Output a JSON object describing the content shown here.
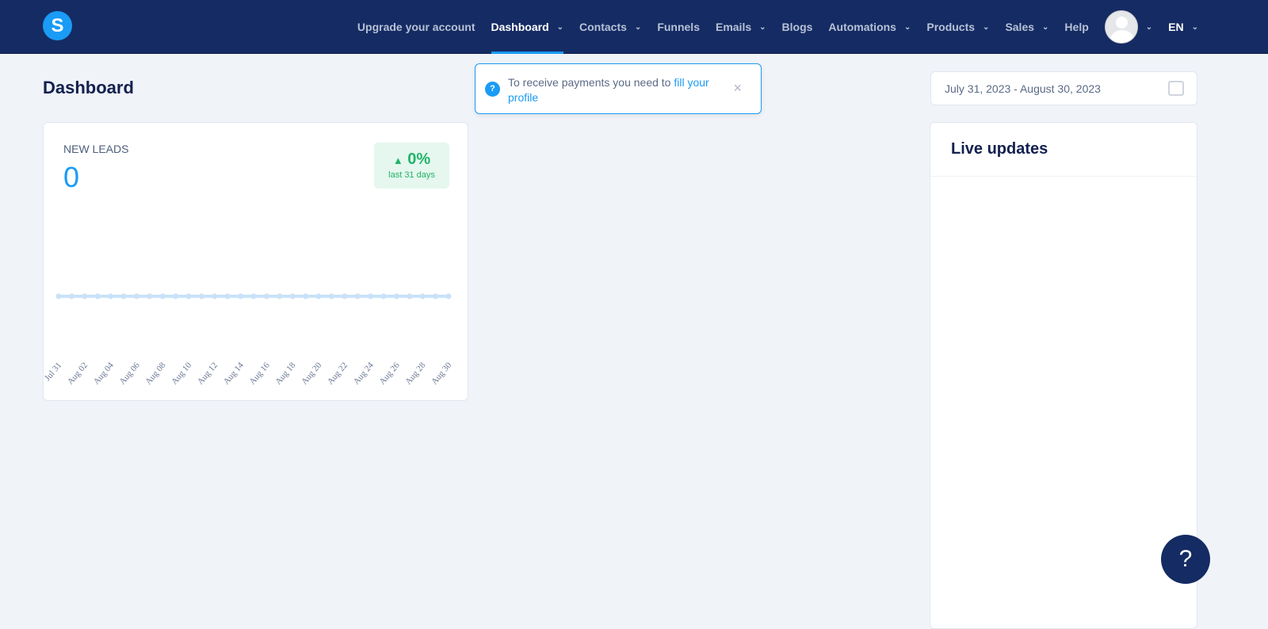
{
  "nav": {
    "logo": "S",
    "items": [
      {
        "label": "Upgrade your account",
        "chevron": false
      },
      {
        "label": "Dashboard",
        "chevron": true,
        "active": true
      },
      {
        "label": "Contacts",
        "chevron": true
      },
      {
        "label": "Funnels",
        "chevron": false
      },
      {
        "label": "Emails",
        "chevron": true
      },
      {
        "label": "Blogs",
        "chevron": false
      },
      {
        "label": "Automations",
        "chevron": true
      },
      {
        "label": "Products",
        "chevron": true
      },
      {
        "label": "Sales",
        "chevron": true
      },
      {
        "label": "Help",
        "chevron": false
      }
    ],
    "language": "EN"
  },
  "page": {
    "title": "Dashboard"
  },
  "toast": {
    "text": "To receive payments you need to ",
    "link": "fill your profile"
  },
  "date_range": "July 31, 2023 - August 30, 2023",
  "leads": {
    "label": "NEW LEADS",
    "value": "0",
    "change": "0%",
    "period": "last 31 days"
  },
  "live": {
    "title": "Live updates"
  },
  "help_button": "?",
  "chart_data": {
    "type": "line",
    "x_tick_labels": [
      "Jul 31",
      "Aug 02",
      "Aug 04",
      "Aug 06",
      "Aug 08",
      "Aug 10",
      "Aug 12",
      "Aug 14",
      "Aug 16",
      "Aug 18",
      "Aug 20",
      "Aug 22",
      "Aug 24",
      "Aug 26",
      "Aug 28",
      "Aug 30"
    ],
    "x_start": "2023-07-31",
    "values": [
      0,
      0,
      0,
      0,
      0,
      0,
      0,
      0,
      0,
      0,
      0,
      0,
      0,
      0,
      0,
      0,
      0,
      0,
      0,
      0,
      0,
      0,
      0,
      0,
      0,
      0,
      0,
      0,
      0,
      0,
      0
    ],
    "color": "#c9e2f8",
    "grid": false
  }
}
